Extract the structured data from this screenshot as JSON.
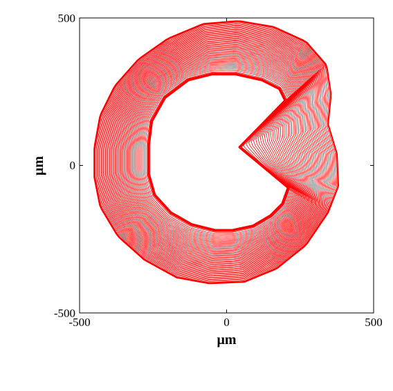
{
  "chart_data": {
    "type": "line",
    "title": "",
    "xlabel": "μm",
    "ylabel": "μm",
    "xlim": [
      -500,
      500
    ],
    "ylim": [
      -500,
      500
    ],
    "xticks": [
      "-500",
      "0",
      "500"
    ],
    "yticks": [
      "-500",
      "0",
      "500"
    ],
    "grid": false,
    "legend": "none",
    "line_color": "#ff0000",
    "series": [
      {
        "role": "initial-contour",
        "points": [
          [
            -265,
            70
          ],
          [
            -255,
            150
          ],
          [
            -210,
            230
          ],
          [
            -130,
            290
          ],
          [
            -50,
            310
          ],
          [
            30,
            310
          ],
          [
            120,
            290
          ],
          [
            180,
            260
          ],
          [
            200,
            220
          ],
          [
            45,
            62
          ],
          [
            210,
            -75
          ],
          [
            190,
            -130
          ],
          [
            150,
            -170
          ],
          [
            90,
            -205
          ],
          [
            20,
            -220
          ],
          [
            -40,
            -220
          ],
          [
            -120,
            -200
          ],
          [
            -190,
            -160
          ],
          [
            -245,
            -100
          ],
          [
            -265,
            -30
          ],
          [
            -265,
            70
          ]
        ]
      },
      {
        "role": "final-contour",
        "points": [
          [
            -450,
            60
          ],
          [
            -430,
            170
          ],
          [
            -380,
            270
          ],
          [
            -300,
            360
          ],
          [
            -200,
            430
          ],
          [
            -80,
            480
          ],
          [
            40,
            490
          ],
          [
            160,
            470
          ],
          [
            270,
            420
          ],
          [
            340,
            340
          ],
          [
            355,
            240
          ],
          [
            345,
            140
          ],
          [
            375,
            40
          ],
          [
            380,
            -70
          ],
          [
            345,
            -160
          ],
          [
            270,
            -270
          ],
          [
            170,
            -350
          ],
          [
            60,
            -395
          ],
          [
            -60,
            -400
          ],
          [
            -170,
            -380
          ],
          [
            -280,
            -320
          ],
          [
            -370,
            -240
          ],
          [
            -430,
            -140
          ],
          [
            -450,
            -40
          ],
          [
            -450,
            60
          ]
        ]
      }
    ],
    "intermediate_contours": 45
  }
}
